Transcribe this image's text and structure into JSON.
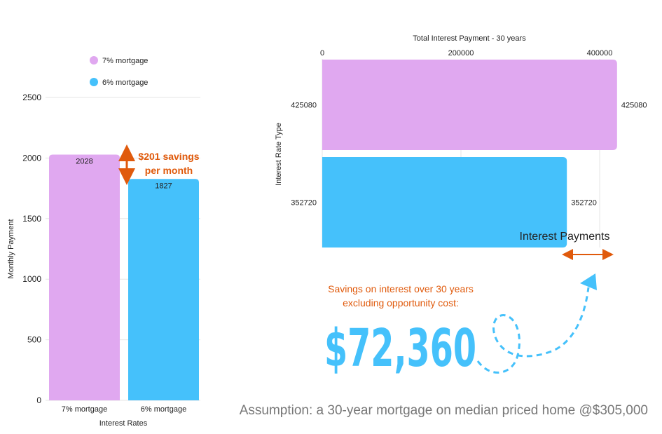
{
  "chart_data": [
    {
      "type": "bar",
      "orientation": "vertical",
      "title": "",
      "categories": [
        "7% mortgage",
        "6% mortgage"
      ],
      "values": [
        2028,
        1827
      ],
      "colors": [
        "#e0a8f0",
        "#45c1fb"
      ],
      "value_labels": [
        "2028",
        "1827"
      ],
      "xlabel": "Interest Rates",
      "ylabel": "Monthly Payment",
      "ylim": [
        0,
        2500
      ],
      "yticks": [
        0,
        500,
        1000,
        1500,
        2000,
        2500
      ],
      "ytick_labels": [
        "0",
        "500",
        "1000",
        "1500",
        "2000",
        "2500"
      ],
      "legend": {
        "position": "top-left",
        "entries": [
          {
            "label": "7% mortgage",
            "color": "#e0a8f0"
          },
          {
            "label": "6% mortgage",
            "color": "#45c1fb"
          }
        ]
      },
      "annotation": {
        "line1": "$201 savings",
        "line2": "per month",
        "color": "#e05a0c"
      }
    },
    {
      "type": "bar",
      "orientation": "horizontal",
      "title": "Total Interest Payment - 30 years",
      "categories": [
        "425080",
        "352720"
      ],
      "values": [
        425080,
        352720
      ],
      "colors": [
        "#e0a8f0",
        "#45c1fb"
      ],
      "value_labels": [
        "425080",
        "352720"
      ],
      "ylabel": "Interest Rate Type",
      "xlim": [
        0,
        430000
      ],
      "xticks": [
        0,
        200000,
        400000
      ],
      "xtick_labels": [
        "0",
        "200000",
        "400000"
      ],
      "annotation": {
        "label": "Interest Payments",
        "color": "#e05a0c"
      }
    }
  ],
  "savings": {
    "note_line1": "Savings on interest over 30 years",
    "note_line2": "excluding opportunity cost:",
    "amount": "$72,360"
  },
  "assumption": "Assumption: a 30-year mortgage on median priced home @$305,000"
}
